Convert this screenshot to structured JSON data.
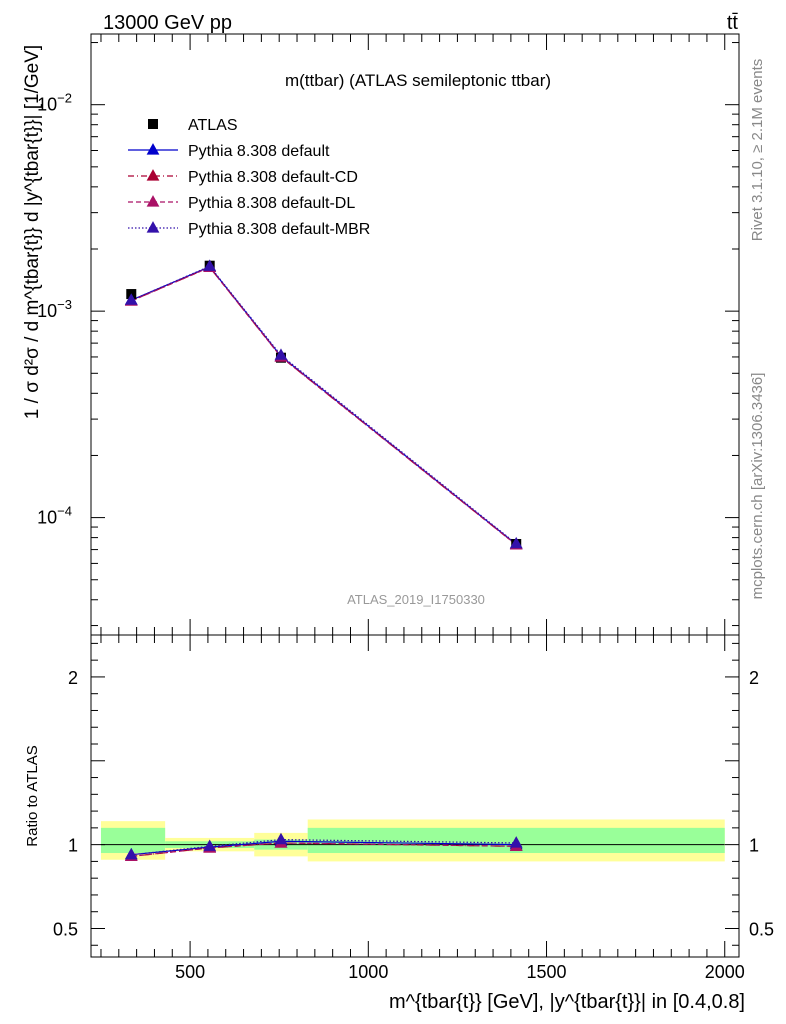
{
  "header": {
    "left": "13000 GeV pp",
    "right": "tt̄"
  },
  "side_text": {
    "rivet": "Rivet 3.1.10, ≥ 2.1M events",
    "mcplots": "mcplots.cern.ch [arXiv:1306.3436]"
  },
  "chart_data": [
    {
      "type": "scatter",
      "panel": "main",
      "title": "m(ttbar) (ATLAS semileptonic ttbar)",
      "watermark": "ATLAS_2019_I1750330",
      "ylabel": "1 / σ d²σ / d m^{tbar{t}} d |y^{tbar{t}}| [1/GeV]",
      "yscale": "log",
      "xlim": [
        222,
        2040
      ],
      "ylim": [
        2.7e-05,
        0.022
      ],
      "y_tick_labels": [
        "10^{-4}",
        "10^{-3}",
        "10^{-2}"
      ],
      "legend_position": "top-left",
      "series": [
        {
          "name": "ATLAS",
          "color": "#000000",
          "marker": "square",
          "line": "none",
          "x": [
            335,
            555,
            755,
            1415
          ],
          "y": [
            0.00121,
            0.00166,
            0.000595,
            7.45e-05
          ]
        },
        {
          "name": "Pythia 8.308 default",
          "color": "#0000cc",
          "marker": "triangle",
          "line": "solid",
          "x": [
            335,
            555,
            755,
            1415
          ],
          "y": [
            0.00113,
            0.00164,
            0.000605,
            7.42e-05
          ]
        },
        {
          "name": "Pythia 8.308 default-CD",
          "color": "#aa0033",
          "marker": "triangle",
          "line": "dashdot",
          "x": [
            335,
            555,
            755,
            1415
          ],
          "y": [
            0.00112,
            0.00163,
            0.0006,
            7.38e-05
          ]
        },
        {
          "name": "Pythia 8.308 default-DL",
          "color": "#aa1166",
          "marker": "triangle",
          "line": "dashed",
          "x": [
            335,
            555,
            755,
            1415
          ],
          "y": [
            0.00112,
            0.00163,
            0.0006,
            7.38e-05
          ]
        },
        {
          "name": "Pythia 8.308 default-MBR",
          "color": "#3311aa",
          "marker": "triangle",
          "line": "dotted",
          "x": [
            335,
            555,
            755,
            1415
          ],
          "y": [
            0.00113,
            0.00165,
            0.000612,
            7.48e-05
          ]
        }
      ]
    },
    {
      "type": "scatter",
      "panel": "ratio",
      "ylabel": "Ratio to ATLAS",
      "xlabel": "m^{tbar{t}} [GeV], |y^{tbar{t}}| in [0.4,0.8]",
      "xlim": [
        222,
        2040
      ],
      "ylim": [
        0.33,
        2.25
      ],
      "x_ticks": [
        500,
        1000,
        1500,
        2000
      ],
      "x_tick_labels": [
        "500",
        "1000",
        "1500",
        "2000"
      ],
      "y_ticks": [
        0.5,
        1,
        2
      ],
      "y_tick_labels": [
        "0.5",
        "1",
        "2"
      ],
      "bands": [
        {
          "x0": 250,
          "x1": 430,
          "green": [
            0.95,
            1.1
          ],
          "yellow": [
            0.91,
            1.14
          ]
        },
        {
          "x0": 430,
          "x1": 680,
          "green": [
            0.98,
            1.02
          ],
          "yellow": [
            0.96,
            1.04
          ]
        },
        {
          "x0": 680,
          "x1": 830,
          "green": [
            0.97,
            1.03
          ],
          "yellow": [
            0.93,
            1.07
          ]
        },
        {
          "x0": 830,
          "x1": 2000,
          "green": [
            0.95,
            1.1
          ],
          "yellow": [
            0.9,
            1.15
          ]
        }
      ],
      "band_colors": {
        "green": "#99ff99",
        "yellow": "#ffff99"
      },
      "series": [
        {
          "name": "Pythia 8.308 default",
          "color": "#0000cc",
          "line": "solid",
          "x": [
            335,
            555,
            755,
            1415
          ],
          "y": [
            0.94,
            0.985,
            1.02,
            1.0
          ]
        },
        {
          "name": "Pythia 8.308 default-CD",
          "color": "#aa0033",
          "line": "dashdot",
          "x": [
            335,
            555,
            755,
            1415
          ],
          "y": [
            0.93,
            0.98,
            1.01,
            0.99
          ]
        },
        {
          "name": "Pythia 8.308 default-DL",
          "color": "#aa1166",
          "line": "dashed",
          "x": [
            335,
            555,
            755,
            1415
          ],
          "y": [
            0.93,
            0.98,
            1.01,
            0.99
          ]
        },
        {
          "name": "Pythia 8.308 default-MBR",
          "color": "#3311aa",
          "line": "dotted",
          "x": [
            335,
            555,
            755,
            1415
          ],
          "y": [
            0.94,
            0.99,
            1.03,
            1.01
          ]
        }
      ]
    }
  ]
}
